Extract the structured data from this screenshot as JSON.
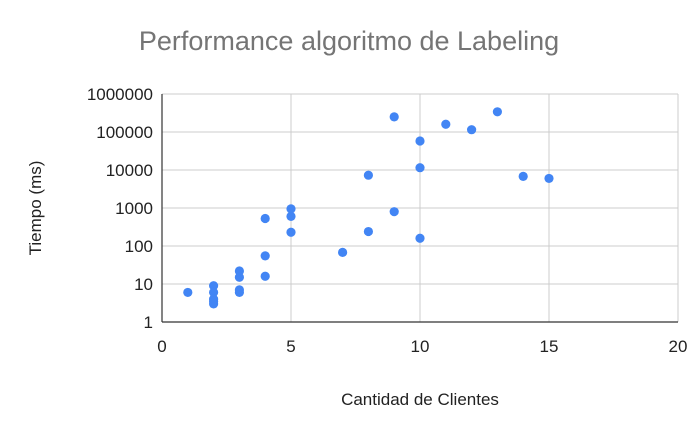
{
  "chart_data": {
    "type": "scatter",
    "title": "Performance algoritmo de Labeling",
    "xlabel": "Cantidad de Clientes",
    "ylabel": "Tiempo (ms)",
    "xlim": [
      0,
      20
    ],
    "ylim": [
      1,
      1000000
    ],
    "y_scale": "log",
    "x_ticks": [
      "0",
      "5",
      "10",
      "15",
      "20"
    ],
    "y_ticks": [
      "1",
      "10",
      "100",
      "1000",
      "10000",
      "100000",
      "1000000"
    ],
    "grid": true,
    "legend": "none",
    "marker_color": "#4285f4",
    "points": [
      {
        "x": 1,
        "y": 6
      },
      {
        "x": 2,
        "y": 9
      },
      {
        "x": 2,
        "y": 6
      },
      {
        "x": 2,
        "y": 4
      },
      {
        "x": 2,
        "y": 3.5
      },
      {
        "x": 2,
        "y": 3
      },
      {
        "x": 3,
        "y": 22
      },
      {
        "x": 3,
        "y": 15
      },
      {
        "x": 3,
        "y": 7
      },
      {
        "x": 3,
        "y": 6
      },
      {
        "x": 4,
        "y": 530
      },
      {
        "x": 4,
        "y": 55
      },
      {
        "x": 4,
        "y": 16
      },
      {
        "x": 5,
        "y": 950
      },
      {
        "x": 5,
        "y": 600
      },
      {
        "x": 5,
        "y": 230
      },
      {
        "x": 7,
        "y": 68
      },
      {
        "x": 8,
        "y": 7300
      },
      {
        "x": 8,
        "y": 240
      },
      {
        "x": 9,
        "y": 250000
      },
      {
        "x": 9,
        "y": 800
      },
      {
        "x": 10,
        "y": 58000
      },
      {
        "x": 10,
        "y": 11500
      },
      {
        "x": 10,
        "y": 160
      },
      {
        "x": 11,
        "y": 160000
      },
      {
        "x": 12,
        "y": 115000
      },
      {
        "x": 13,
        "y": 340000
      },
      {
        "x": 14,
        "y": 6800
      },
      {
        "x": 15,
        "y": 6000
      }
    ]
  }
}
